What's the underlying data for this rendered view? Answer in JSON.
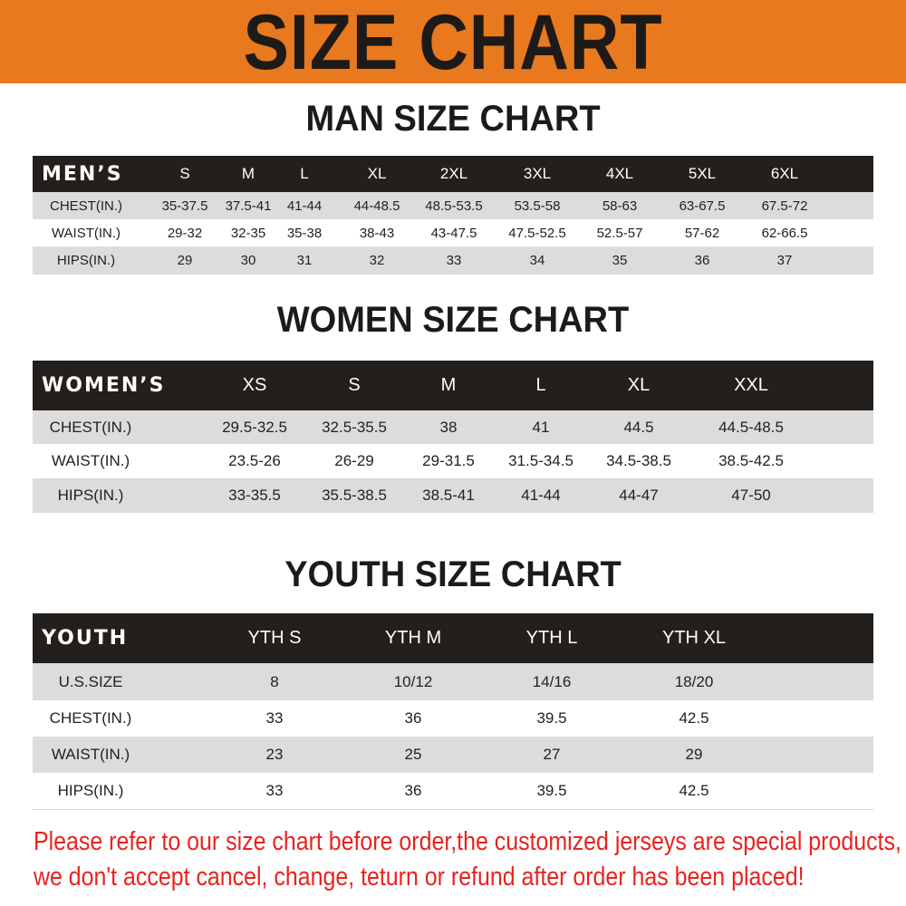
{
  "banner": {
    "title": "SIZE CHART",
    "color": "#e8791e"
  },
  "men": {
    "title": "MAN SIZE CHART",
    "header_label": "MEN’S",
    "sizes": [
      "S",
      "M",
      "L",
      "XL",
      "2XL",
      "3XL",
      "4XL",
      "5XL",
      "6XL"
    ],
    "rows": [
      {
        "label": "CHEST(IN.)",
        "values": [
          "35-37.5",
          "37.5-41",
          "41-44",
          "44-48.5",
          "48.5-53.5",
          "53.5-58",
          "58-63",
          "63-67.5",
          "67.5-72"
        ]
      },
      {
        "label": "WAIST(IN.)",
        "values": [
          "29-32",
          "32-35",
          "35-38",
          "38-43",
          "43-47.5",
          "47.5-52.5",
          "52.5-57",
          "57-62",
          "62-66.5"
        ]
      },
      {
        "label": "HIPS(IN.)",
        "values": [
          "29",
          "30",
          "31",
          "32",
          "33",
          "34",
          "35",
          "36",
          "37"
        ]
      }
    ]
  },
  "women": {
    "title": "WOMEN SIZE CHART",
    "header_label": "WOMEN’S",
    "sizes": [
      "XS",
      "S",
      "M",
      "L",
      "XL",
      "XXL"
    ],
    "rows": [
      {
        "label": "CHEST(IN.)",
        "values": [
          "29.5-32.5",
          "32.5-35.5",
          "38",
          "41",
          "44.5",
          "44.5-48.5"
        ]
      },
      {
        "label": "WAIST(IN.)",
        "values": [
          "23.5-26",
          "26-29",
          "29-31.5",
          "31.5-34.5",
          "34.5-38.5",
          "38.5-42.5"
        ]
      },
      {
        "label": "HIPS(IN.)",
        "values": [
          "33-35.5",
          "35.5-38.5",
          "38.5-41",
          "41-44",
          "44-47",
          "47-50"
        ]
      }
    ]
  },
  "youth": {
    "title": "YOUTH SIZE CHART",
    "header_label": "YOUTH",
    "sizes": [
      "YTH S",
      "YTH M",
      "YTH L",
      "YTH XL"
    ],
    "rows": [
      {
        "label": "U.S.SIZE",
        "values": [
          "8",
          "10/12",
          "14/16",
          "18/20"
        ]
      },
      {
        "label": "CHEST(IN.)",
        "values": [
          "33",
          "36",
          "39.5",
          "42.5"
        ]
      },
      {
        "label": "WAIST(IN.)",
        "values": [
          "23",
          "25",
          "27",
          "29"
        ]
      },
      {
        "label": "HIPS(IN.)",
        "values": [
          "33",
          "36",
          "39.5",
          "42.5"
        ]
      }
    ]
  },
  "notice": {
    "line1": "Please refer to our size chart before order,the customized jerseys are special products,",
    "line2": "we don't accept cancel, change, teturn or refund after order has been placed!",
    "color": "#e8231f"
  }
}
